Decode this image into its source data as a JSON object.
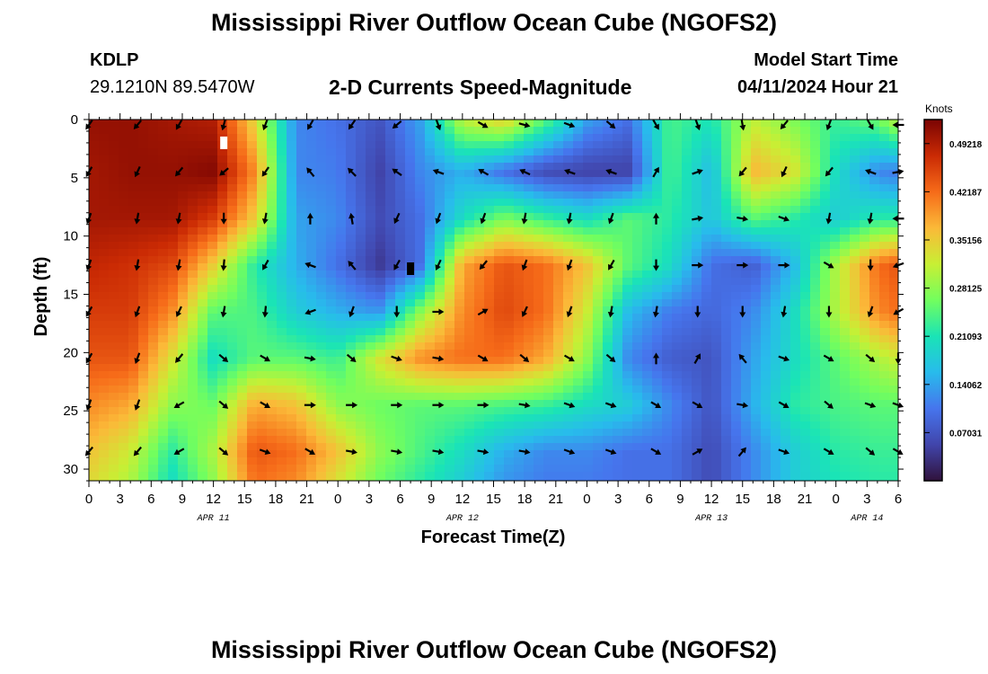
{
  "header": {
    "title": "Mississippi River Outflow Ocean Cube (NGOFS2)",
    "station_id": "KDLP",
    "coords": "29.1210N  89.5470W",
    "subtitle": "2-D Currents Speed-Magnitude",
    "model_start_label": "Model Start Time",
    "model_start_value": "04/11/2024 Hour 21"
  },
  "footer_title": "Mississippi River Outflow Ocean Cube (NGOFS2)",
  "chart_data": {
    "type": "heatmap",
    "title": "2-D Currents Speed-Magnitude",
    "xlabel": "Forecast Time(Z)",
    "ylabel": "Depth (ft)",
    "xlim": [
      0,
      78
    ],
    "ylim": [
      0,
      31
    ],
    "x_ticks": [
      {
        "v": 0,
        "label": "0"
      },
      {
        "v": 3,
        "label": "3"
      },
      {
        "v": 6,
        "label": "6"
      },
      {
        "v": 9,
        "label": "9"
      },
      {
        "v": 12,
        "label": "12"
      },
      {
        "v": 15,
        "label": "15"
      },
      {
        "v": 18,
        "label": "18"
      },
      {
        "v": 21,
        "label": "21"
      },
      {
        "v": 24,
        "label": "0"
      },
      {
        "v": 27,
        "label": "3"
      },
      {
        "v": 30,
        "label": "6"
      },
      {
        "v": 33,
        "label": "9"
      },
      {
        "v": 36,
        "label": "12"
      },
      {
        "v": 39,
        "label": "15"
      },
      {
        "v": 42,
        "label": "18"
      },
      {
        "v": 45,
        "label": "21"
      },
      {
        "v": 48,
        "label": "0"
      },
      {
        "v": 51,
        "label": "3"
      },
      {
        "v": 54,
        "label": "6"
      },
      {
        "v": 57,
        "label": "9"
      },
      {
        "v": 60,
        "label": "12"
      },
      {
        "v": 63,
        "label": "15"
      },
      {
        "v": 66,
        "label": "18"
      },
      {
        "v": 69,
        "label": "21"
      },
      {
        "v": 72,
        "label": "0"
      },
      {
        "v": 75,
        "label": "3"
      },
      {
        "v": 78,
        "label": "6"
      }
    ],
    "date_labels": [
      {
        "v": 12,
        "label": "APR 11"
      },
      {
        "v": 36,
        "label": "APR 12"
      },
      {
        "v": 60,
        "label": "APR 13"
      },
      {
        "v": 75,
        "label": "APR 14"
      }
    ],
    "y_ticks": [
      0,
      5,
      10,
      15,
      20,
      25,
      30
    ],
    "colorbar": {
      "label": "Knots",
      "range": [
        0,
        0.5273
      ],
      "ticks": [
        {
          "v": 0.49218,
          "label": "0.49218"
        },
        {
          "v": 0.42187,
          "label": "0.42187"
        },
        {
          "v": 0.35156,
          "label": "0.35156"
        },
        {
          "v": 0.28125,
          "label": "0.28125"
        },
        {
          "v": 0.21093,
          "label": "0.21093"
        },
        {
          "v": 0.14062,
          "label": "0.14062"
        },
        {
          "v": 0.07031,
          "label": "0.07031"
        }
      ]
    },
    "speed_field_knots": {
      "hours": [
        0,
        4,
        8,
        12,
        16,
        20,
        24,
        28,
        32,
        36,
        40,
        44,
        48,
        52,
        56,
        60,
        64,
        68,
        72,
        76,
        78
      ],
      "depths": [
        0,
        4.5,
        8.5,
        12.5,
        16.5,
        20.5,
        24.5,
        28.5,
        31
      ],
      "values": [
        [
          0.51,
          0.51,
          0.5,
          0.49,
          0.34,
          0.12,
          0.1,
          0.07,
          0.14,
          0.31,
          0.35,
          0.25,
          0.14,
          0.1,
          0.24,
          0.21,
          0.31,
          0.27,
          0.23,
          0.26,
          0.31
        ],
        [
          0.5,
          0.51,
          0.51,
          0.52,
          0.4,
          0.12,
          0.11,
          0.05,
          0.12,
          0.15,
          0.1,
          0.06,
          0.05,
          0.05,
          0.24,
          0.16,
          0.37,
          0.33,
          0.2,
          0.12,
          0.11
        ],
        [
          0.5,
          0.5,
          0.5,
          0.46,
          0.35,
          0.14,
          0.12,
          0.06,
          0.1,
          0.2,
          0.27,
          0.23,
          0.2,
          0.25,
          0.22,
          0.17,
          0.25,
          0.22,
          0.18,
          0.22,
          0.22
        ],
        [
          0.48,
          0.47,
          0.45,
          0.35,
          0.22,
          0.15,
          0.1,
          0.04,
          0.1,
          0.38,
          0.44,
          0.42,
          0.36,
          0.25,
          0.2,
          0.1,
          0.08,
          0.16,
          0.3,
          0.42,
          0.44
        ],
        [
          0.46,
          0.46,
          0.4,
          0.25,
          0.24,
          0.18,
          0.15,
          0.13,
          0.28,
          0.4,
          0.45,
          0.42,
          0.32,
          0.16,
          0.11,
          0.09,
          0.12,
          0.2,
          0.3,
          0.4,
          0.42
        ],
        [
          0.44,
          0.44,
          0.33,
          0.2,
          0.25,
          0.25,
          0.23,
          0.33,
          0.4,
          0.42,
          0.42,
          0.38,
          0.28,
          0.12,
          0.08,
          0.07,
          0.14,
          0.2,
          0.25,
          0.3,
          0.32
        ],
        [
          0.4,
          0.38,
          0.28,
          0.26,
          0.38,
          0.36,
          0.28,
          0.26,
          0.25,
          0.25,
          0.24,
          0.23,
          0.2,
          0.18,
          0.12,
          0.07,
          0.15,
          0.22,
          0.24,
          0.25,
          0.25
        ],
        [
          0.36,
          0.32,
          0.22,
          0.3,
          0.44,
          0.42,
          0.36,
          0.28,
          0.24,
          0.2,
          0.15,
          0.12,
          0.12,
          0.1,
          0.1,
          0.06,
          0.12,
          0.18,
          0.22,
          0.23,
          0.23
        ],
        [
          0.34,
          0.3,
          0.2,
          0.28,
          0.42,
          0.4,
          0.33,
          0.26,
          0.22,
          0.18,
          0.13,
          0.11,
          0.11,
          0.1,
          0.1,
          0.06,
          0.12,
          0.18,
          0.21,
          0.22,
          0.22
        ]
      ]
    },
    "vectors": {
      "hours": [
        0,
        4.67,
        8.67,
        13,
        17,
        21.33,
        25.33,
        29.67,
        33.67,
        38,
        42,
        46.33,
        50.33,
        54.67,
        58.67,
        63,
        67,
        71.33,
        75.33,
        78
      ],
      "depths": [
        0,
        4.5,
        8.5,
        12.5,
        16.5,
        20.5,
        24.5,
        28.5
      ],
      "angle_deg": [
        [
          125,
          130,
          120,
          105,
          110,
          120,
          125,
          140,
          70,
          30,
          15,
          20,
          40,
          60,
          70,
          80,
          130,
          110,
          60,
          180
        ],
        [
          120,
          115,
          130,
          140,
          125,
          230,
          225,
          215,
          200,
          210,
          205,
          200,
          200,
          300,
          340,
          130,
          115,
          130,
          200,
          350
        ],
        [
          110,
          100,
          100,
          90,
          100,
          270,
          260,
          115,
          110,
          110,
          100,
          100,
          110,
          270,
          350,
          10,
          20,
          100,
          100,
          180
        ],
        [
          110,
          100,
          100,
          95,
          120,
          200,
          230,
          120,
          115,
          130,
          110,
          110,
          120,
          90,
          0,
          0,
          0,
          30,
          90,
          160
        ],
        [
          120,
          110,
          115,
          100,
          95,
          160,
          110,
          90,
          0,
          330,
          115,
          110,
          100,
          100,
          90,
          90,
          100,
          90,
          110,
          150
        ],
        [
          120,
          110,
          130,
          40,
          30,
          10,
          40,
          20,
          10,
          30,
          40,
          30,
          40,
          270,
          300,
          230,
          20,
          30,
          40,
          90
        ],
        [
          110,
          110,
          150,
          40,
          30,
          0,
          0,
          0,
          0,
          0,
          10,
          20,
          20,
          30,
          30,
          10,
          30,
          40,
          20,
          20
        ],
        [
          130,
          130,
          150,
          40,
          20,
          30,
          10,
          10,
          10,
          10,
          10,
          20,
          20,
          30,
          330,
          310,
          20,
          30,
          40,
          30
        ]
      ]
    },
    "missing_markers": [
      {
        "hour": 13,
        "depth": 2.0,
        "color": "#ffffff"
      },
      {
        "hour": 31,
        "depth": 12.8,
        "color": "#000000"
      }
    ]
  }
}
